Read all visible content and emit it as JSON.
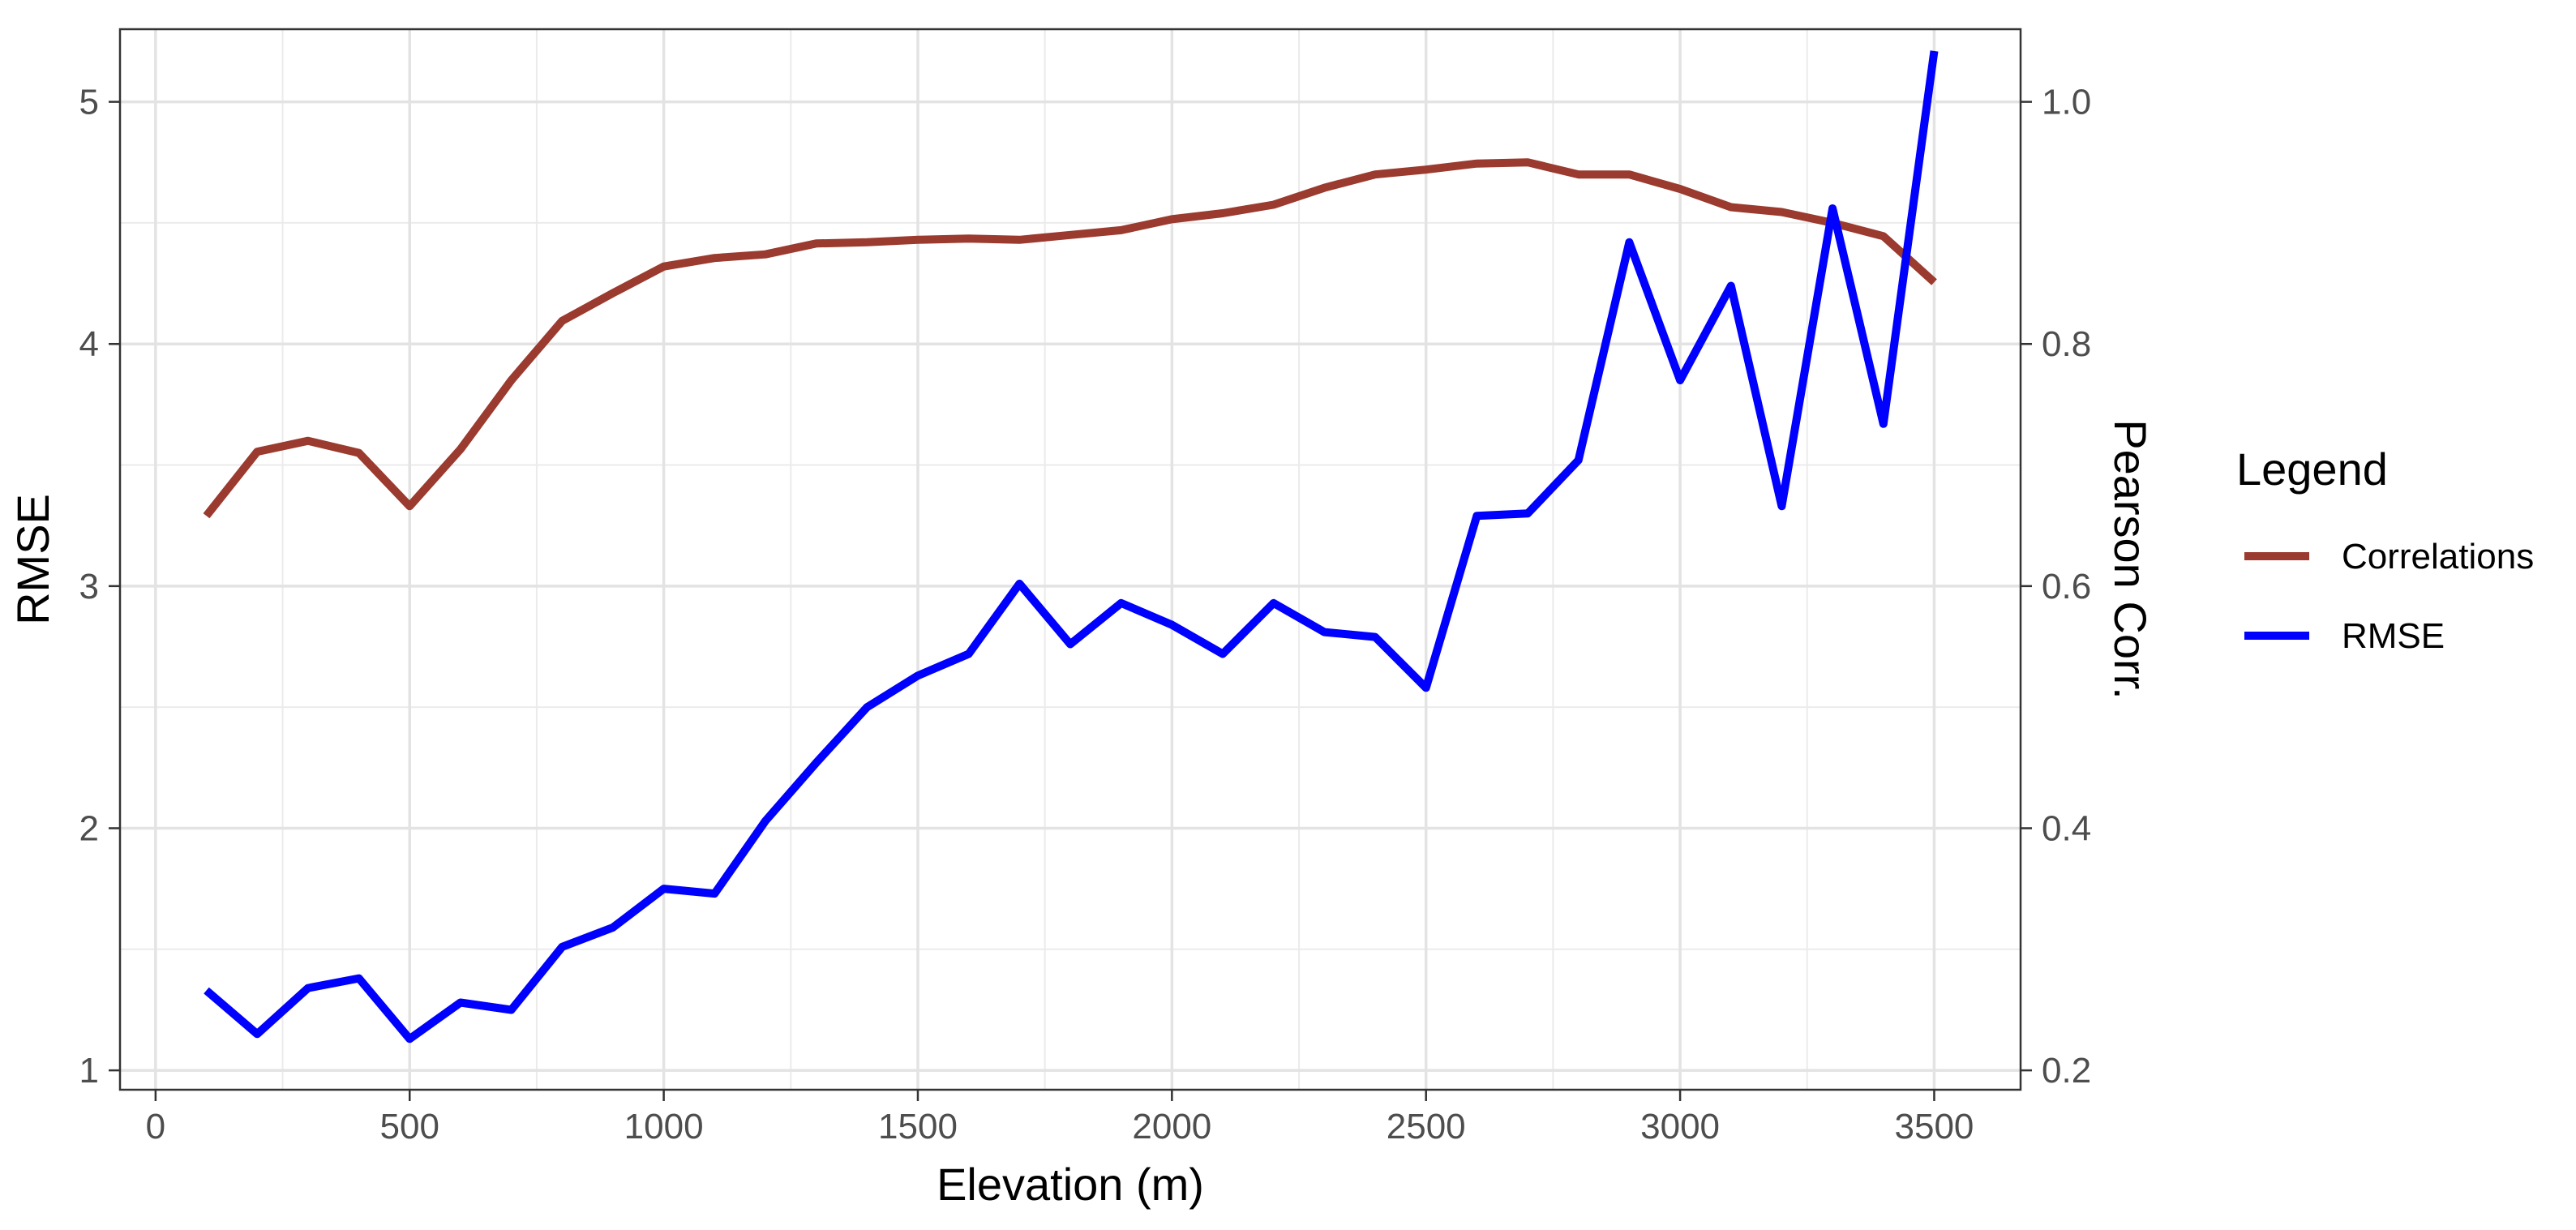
{
  "chart_data": {
    "type": "line",
    "title": "",
    "xlabel": "Elevation (m)",
    "ylabel": "RMSE",
    "y2label": "Pearson Corr.",
    "xlim": [
      -70,
      3670
    ],
    "ylim": [
      0.92,
      5.3
    ],
    "y2lim": [
      0.184,
      1.06
    ],
    "x_ticks": [
      0,
      500,
      1000,
      1500,
      2000,
      2500,
      3000,
      3500
    ],
    "y_ticks": [
      1,
      2,
      3,
      4,
      5
    ],
    "y2_ticks": [
      0.2,
      0.4,
      0.6,
      0.8,
      1.0
    ],
    "y2_tick_labels": [
      "0.2",
      "0.4",
      "0.6",
      "0.8",
      "1.0"
    ],
    "grid": true,
    "legend": {
      "title": "Legend",
      "position": "right"
    },
    "x": [
      100,
      200,
      300,
      400,
      500,
      600,
      700,
      800,
      900,
      1000,
      1100,
      1200,
      1300,
      1400,
      1500,
      1600,
      1700,
      1800,
      1900,
      2000,
      2100,
      2200,
      2300,
      2400,
      2500,
      2600,
      2700,
      2800,
      2900,
      3000,
      3100,
      3200,
      3300,
      3400,
      3500
    ],
    "series": [
      {
        "name": "Correlations",
        "axis": "right",
        "color": "#9b3a2e",
        "values": [
          0.658,
          0.711,
          0.72,
          0.71,
          0.666,
          0.713,
          0.77,
          0.819,
          0.842,
          0.864,
          0.871,
          0.874,
          0.883,
          0.884,
          0.886,
          0.887,
          0.886,
          0.89,
          0.894,
          0.903,
          0.908,
          0.915,
          0.929,
          0.94,
          0.944,
          0.949,
          0.95,
          0.94,
          0.94,
          0.928,
          0.913,
          0.909,
          0.9,
          0.889,
          0.851
        ]
      },
      {
        "name": "RMSE",
        "axis": "left",
        "color": "#0000ff",
        "values": [
          1.33,
          1.15,
          1.34,
          1.38,
          1.13,
          1.28,
          1.25,
          1.51,
          1.59,
          1.75,
          1.73,
          2.03,
          2.27,
          2.5,
          2.63,
          2.72,
          3.01,
          2.76,
          2.93,
          2.84,
          2.72,
          2.93,
          2.81,
          2.79,
          2.58,
          3.29,
          3.3,
          3.52,
          4.42,
          3.85,
          4.24,
          3.33,
          4.56,
          3.67,
          5.21
        ]
      }
    ]
  }
}
